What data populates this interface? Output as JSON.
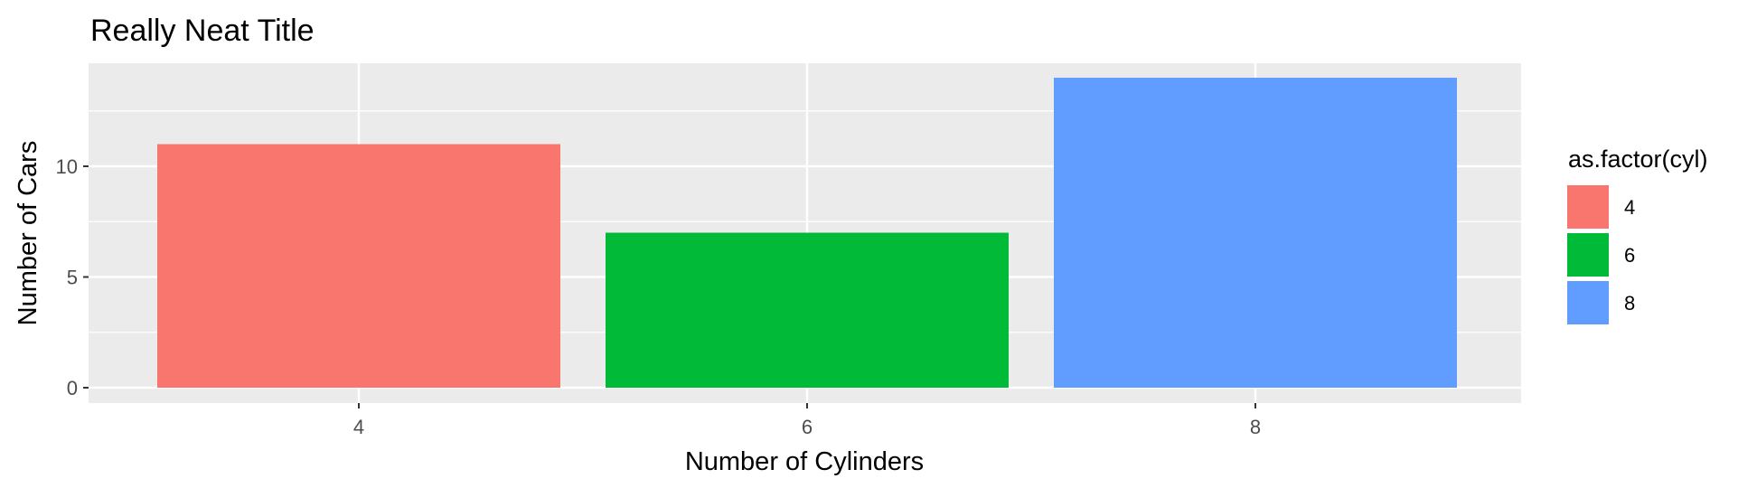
{
  "chart_data": {
    "type": "bar",
    "title": "Really Neat Title",
    "xlabel": "Number of Cylinders",
    "ylabel": "Number of Cars",
    "categories": [
      "4",
      "6",
      "8"
    ],
    "values": [
      11,
      7,
      14
    ],
    "colors": [
      "#F8766D",
      "#00BA38",
      "#619CFF"
    ],
    "ylim": [
      0,
      15
    ],
    "yticks": [
      0,
      5,
      10
    ],
    "grid": true,
    "panel_background": "#EBEBEB",
    "grid_color": "#FFFFFF",
    "legend": {
      "title": "as.factor(cyl)",
      "position": "right",
      "entries": [
        "4",
        "6",
        "8"
      ]
    }
  }
}
